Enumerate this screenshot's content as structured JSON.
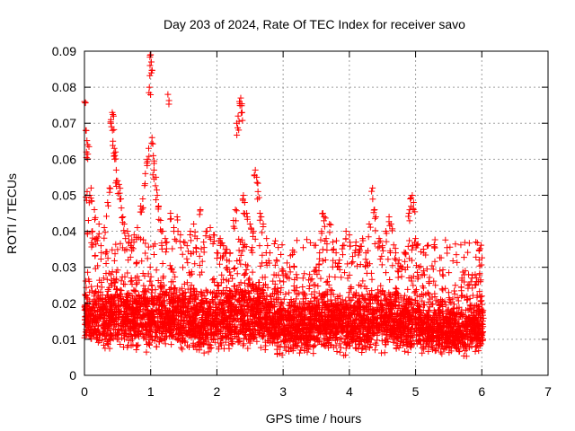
{
  "chart_data": {
    "type": "scatter",
    "title": "Day 203 of 2024, Rate Of TEC Index for receiver savo",
    "xlabel": "GPS time / hours",
    "ylabel": "ROTI / TECUs",
    "xlim": [
      0,
      7
    ],
    "ylim": [
      0,
      0.09
    ],
    "x_ticks": [
      "0",
      "1",
      "2",
      "3",
      "4",
      "5",
      "6",
      "7"
    ],
    "y_ticks": [
      "0",
      "0.01",
      "0.02",
      "0.03",
      "0.04",
      "0.05",
      "0.06",
      "0.07",
      "0.08",
      "0.09"
    ],
    "grid": true,
    "marker": "plus",
    "series": [
      {
        "color": "#ff0000",
        "points": [
          [
            0.0,
            0.076
          ],
          [
            0.02,
            0.068
          ],
          [
            0.03,
            0.062
          ],
          [
            0.05,
            0.064
          ],
          [
            0.04,
            0.051
          ],
          [
            0.08,
            0.05
          ],
          [
            0.06,
            0.043
          ],
          [
            0.1,
            0.052
          ],
          [
            0.12,
            0.04
          ],
          [
            0.15,
            0.046
          ],
          [
            0.18,
            0.038
          ],
          [
            0.22,
            0.042
          ],
          [
            0.25,
            0.036
          ],
          [
            0.3,
            0.041
          ],
          [
            0.35,
            0.048
          ],
          [
            0.38,
            0.052
          ],
          [
            0.4,
            0.071
          ],
          [
            0.42,
            0.073
          ],
          [
            0.44,
            0.072
          ],
          [
            0.43,
            0.065
          ],
          [
            0.45,
            0.063
          ],
          [
            0.47,
            0.062
          ],
          [
            0.48,
            0.057
          ],
          [
            0.5,
            0.054
          ],
          [
            0.52,
            0.053
          ],
          [
            0.55,
            0.049
          ],
          [
            0.58,
            0.044
          ],
          [
            0.6,
            0.042
          ],
          [
            0.62,
            0.038
          ],
          [
            0.65,
            0.04
          ],
          [
            0.7,
            0.036
          ],
          [
            0.75,
            0.039
          ],
          [
            0.8,
            0.041
          ],
          [
            0.85,
            0.047
          ],
          [
            0.88,
            0.049
          ],
          [
            0.92,
            0.056
          ],
          [
            0.95,
            0.06
          ],
          [
            0.97,
            0.063
          ],
          [
            0.98,
            0.08
          ],
          [
            0.99,
            0.086
          ],
          [
            1.0,
            0.089
          ],
          [
            1.01,
            0.087
          ],
          [
            1.02,
            0.066
          ],
          [
            1.04,
            0.061
          ],
          [
            1.05,
            0.057
          ],
          [
            1.08,
            0.055
          ],
          [
            1.1,
            0.05
          ],
          [
            1.12,
            0.047
          ],
          [
            1.15,
            0.043
          ],
          [
            1.18,
            0.04
          ],
          [
            1.22,
            0.038
          ],
          [
            1.26,
            0.078
          ],
          [
            1.3,
            0.045
          ],
          [
            1.35,
            0.041
          ],
          [
            1.4,
            0.044
          ],
          [
            1.45,
            0.039
          ],
          [
            1.5,
            0.037
          ],
          [
            1.55,
            0.036
          ],
          [
            1.6,
            0.04
          ],
          [
            1.65,
            0.042
          ],
          [
            1.7,
            0.038
          ],
          [
            1.75,
            0.046
          ],
          [
            1.8,
            0.037
          ],
          [
            1.85,
            0.04
          ],
          [
            1.9,
            0.041
          ],
          [
            1.95,
            0.039
          ],
          [
            2.0,
            0.034
          ],
          [
            2.05,
            0.038
          ],
          [
            2.1,
            0.036
          ],
          [
            2.15,
            0.032
          ],
          [
            2.2,
            0.034
          ],
          [
            2.25,
            0.043
          ],
          [
            2.28,
            0.046
          ],
          [
            2.3,
            0.07
          ],
          [
            2.32,
            0.072
          ],
          [
            2.34,
            0.076
          ],
          [
            2.36,
            0.077
          ],
          [
            2.38,
            0.073
          ],
          [
            2.4,
            0.05
          ],
          [
            2.42,
            0.048
          ],
          [
            2.45,
            0.045
          ],
          [
            2.5,
            0.042
          ],
          [
            2.55,
            0.04
          ],
          [
            2.58,
            0.057
          ],
          [
            2.6,
            0.055
          ],
          [
            2.62,
            0.051
          ],
          [
            2.65,
            0.045
          ],
          [
            2.7,
            0.042
          ],
          [
            2.75,
            0.038
          ],
          [
            2.8,
            0.034
          ],
          [
            2.9,
            0.032
          ],
          [
            3.0,
            0.029
          ],
          [
            3.1,
            0.03
          ],
          [
            3.2,
            0.028
          ],
          [
            3.3,
            0.027
          ],
          [
            3.4,
            0.028
          ],
          [
            3.5,
            0.03
          ],
          [
            3.55,
            0.034
          ],
          [
            3.58,
            0.04
          ],
          [
            3.6,
            0.045
          ],
          [
            3.62,
            0.044
          ],
          [
            3.65,
            0.038
          ],
          [
            3.7,
            0.042
          ],
          [
            3.75,
            0.037
          ],
          [
            3.8,
            0.034
          ],
          [
            3.85,
            0.032
          ],
          [
            3.9,
            0.036
          ],
          [
            3.95,
            0.04
          ],
          [
            4.0,
            0.039
          ],
          [
            4.05,
            0.033
          ],
          [
            4.1,
            0.037
          ],
          [
            4.15,
            0.035
          ],
          [
            4.2,
            0.038
          ],
          [
            4.25,
            0.034
          ],
          [
            4.3,
            0.042
          ],
          [
            4.35,
            0.052
          ],
          [
            4.38,
            0.046
          ],
          [
            4.4,
            0.044
          ],
          [
            4.45,
            0.038
          ],
          [
            4.5,
            0.036
          ],
          [
            4.55,
            0.04
          ],
          [
            4.6,
            0.044
          ],
          [
            4.63,
            0.042
          ],
          [
            4.7,
            0.034
          ],
          [
            4.75,
            0.032
          ],
          [
            4.8,
            0.03
          ],
          [
            4.85,
            0.034
          ],
          [
            4.9,
            0.045
          ],
          [
            4.92,
            0.049
          ],
          [
            4.95,
            0.05
          ],
          [
            4.97,
            0.048
          ],
          [
            5.0,
            0.038
          ],
          [
            5.05,
            0.03
          ],
          [
            5.1,
            0.028
          ],
          [
            5.2,
            0.026
          ],
          [
            5.3,
            0.025
          ],
          [
            5.4,
            0.024
          ],
          [
            5.5,
            0.023
          ],
          [
            5.6,
            0.025
          ],
          [
            5.7,
            0.027
          ],
          [
            5.75,
            0.029
          ],
          [
            5.8,
            0.028
          ],
          [
            5.85,
            0.027
          ],
          [
            5.9,
            0.028
          ],
          [
            5.95,
            0.026
          ],
          [
            6.0,
            0.022
          ],
          [
            6.02,
            0.018
          ]
        ],
        "bulk": [
          [
            0.0,
            0.008,
            0.028
          ],
          [
            0.25,
            0.006,
            0.03
          ],
          [
            0.5,
            0.006,
            0.032
          ],
          [
            0.75,
            0.006,
            0.03
          ],
          [
            1.0,
            0.006,
            0.032
          ],
          [
            1.25,
            0.006,
            0.031
          ],
          [
            1.5,
            0.006,
            0.029
          ],
          [
            1.75,
            0.005,
            0.028
          ],
          [
            2.0,
            0.006,
            0.029
          ],
          [
            2.25,
            0.006,
            0.031
          ],
          [
            2.5,
            0.007,
            0.032
          ],
          [
            2.75,
            0.006,
            0.028
          ],
          [
            3.0,
            0.005,
            0.026
          ],
          [
            3.25,
            0.005,
            0.025
          ],
          [
            3.5,
            0.005,
            0.027
          ],
          [
            3.75,
            0.005,
            0.028
          ],
          [
            4.0,
            0.005,
            0.028
          ],
          [
            4.25,
            0.005,
            0.029
          ],
          [
            4.5,
            0.006,
            0.028
          ],
          [
            4.75,
            0.006,
            0.027
          ],
          [
            5.0,
            0.005,
            0.026
          ],
          [
            5.25,
            0.005,
            0.024
          ],
          [
            5.5,
            0.005,
            0.023
          ],
          [
            5.75,
            0.004,
            0.025
          ],
          [
            6.0,
            0.006,
            0.024
          ],
          [
            6.02,
            0.007,
            0.02
          ]
        ]
      }
    ]
  }
}
